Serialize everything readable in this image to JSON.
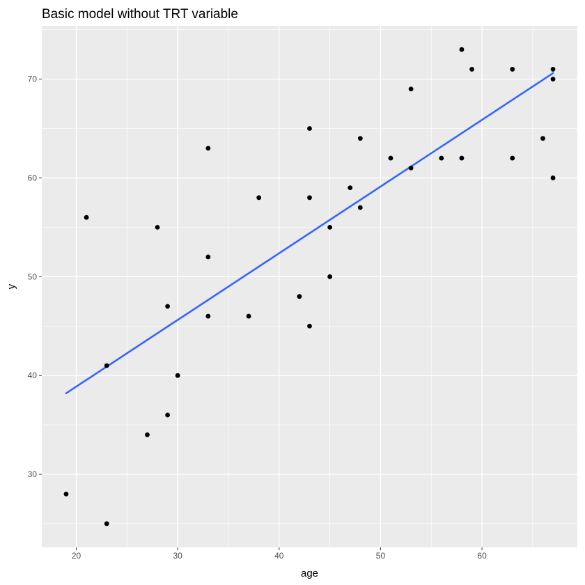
{
  "chart_data": {
    "type": "scatter",
    "title": "Basic model without TRT variable",
    "xlabel": "age",
    "ylabel": "y",
    "xlim": [
      16.6,
      69.4
    ],
    "ylim": [
      22.6,
      75.4
    ],
    "x_ticks": [
      20,
      30,
      40,
      50,
      60
    ],
    "y_ticks": [
      30,
      40,
      50,
      60,
      70
    ],
    "grid": true,
    "legend": "none",
    "colors": {
      "panel_background": "#ebebeb",
      "grid_major": "#ffffff",
      "points": "#000000",
      "fit_line": "#3366ff",
      "tick_labels": "#4d4d4d"
    },
    "points": [
      {
        "x": 19,
        "y": 28
      },
      {
        "x": 21,
        "y": 56
      },
      {
        "x": 23,
        "y": 41
      },
      {
        "x": 23,
        "y": 25
      },
      {
        "x": 27,
        "y": 34
      },
      {
        "x": 28,
        "y": 55
      },
      {
        "x": 29,
        "y": 47
      },
      {
        "x": 29,
        "y": 36
      },
      {
        "x": 30,
        "y": 40
      },
      {
        "x": 33,
        "y": 63
      },
      {
        "x": 33,
        "y": 52
      },
      {
        "x": 33,
        "y": 46
      },
      {
        "x": 37,
        "y": 46
      },
      {
        "x": 38,
        "y": 58
      },
      {
        "x": 42,
        "y": 48
      },
      {
        "x": 43,
        "y": 65
      },
      {
        "x": 43,
        "y": 58
      },
      {
        "x": 43,
        "y": 45
      },
      {
        "x": 45,
        "y": 55
      },
      {
        "x": 45,
        "y": 50
      },
      {
        "x": 47,
        "y": 59
      },
      {
        "x": 48,
        "y": 64
      },
      {
        "x": 48,
        "y": 57
      },
      {
        "x": 51,
        "y": 62
      },
      {
        "x": 53,
        "y": 69
      },
      {
        "x": 53,
        "y": 61
      },
      {
        "x": 56,
        "y": 62
      },
      {
        "x": 58,
        "y": 73
      },
      {
        "x": 58,
        "y": 62
      },
      {
        "x": 59,
        "y": 71
      },
      {
        "x": 63,
        "y": 71
      },
      {
        "x": 63,
        "y": 62
      },
      {
        "x": 66,
        "y": 64
      },
      {
        "x": 67,
        "y": 71
      },
      {
        "x": 67,
        "y": 70
      },
      {
        "x": 67,
        "y": 60
      }
    ],
    "fit_line": {
      "x": [
        19,
        67
      ],
      "y": [
        38.2,
        70.6
      ]
    }
  }
}
